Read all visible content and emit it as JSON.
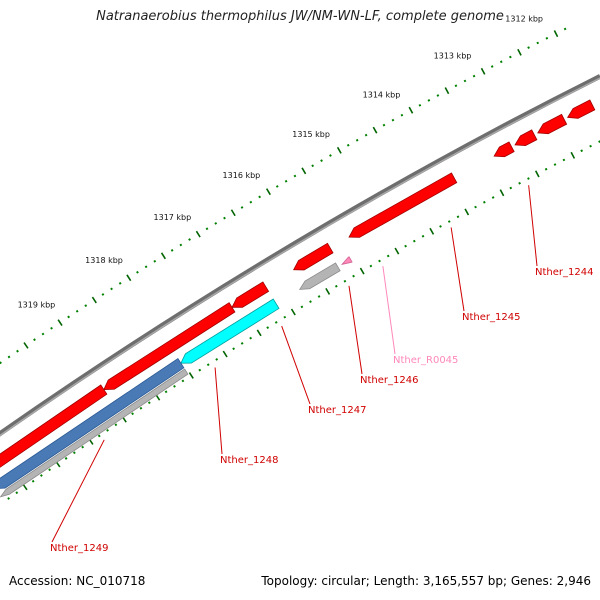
{
  "title": "Natranaerobius thermophilus JW/NM-WN-LF, complete genome",
  "footer": {
    "accession": "Accession: NC_010718",
    "summary": "Topology: circular; Length: 3,165,557 bp; Genes: 2,946"
  },
  "colors": {
    "cds": "#ff0000",
    "rna": "#00ffff",
    "pseudo": "#b4b4b4",
    "misc": "#ff88bb",
    "backbone": "#808080",
    "tick_major": "#006400",
    "tick_minor": "#008000"
  },
  "scale_labels": [
    "1312 kbp",
    "1313 kbp",
    "1314 kbp",
    "1315 kbp",
    "1316 kbp",
    "1317 kbp",
    "1318 kbp",
    "1319 kbp"
  ],
  "genes": [
    {
      "label": "Nther_1244",
      "color": "#d00000"
    },
    {
      "label": "Nther_1245",
      "color": "#d00000"
    },
    {
      "label": "Nther_R0045",
      "color": "#ff88bb"
    },
    {
      "label": "Nther_1246",
      "color": "#d00000"
    },
    {
      "label": "Nther_1247",
      "color": "#d00000"
    },
    {
      "label": "Nther_1248",
      "color": "#d00000"
    },
    {
      "label": "Nther_1249",
      "color": "#d00000"
    }
  ]
}
